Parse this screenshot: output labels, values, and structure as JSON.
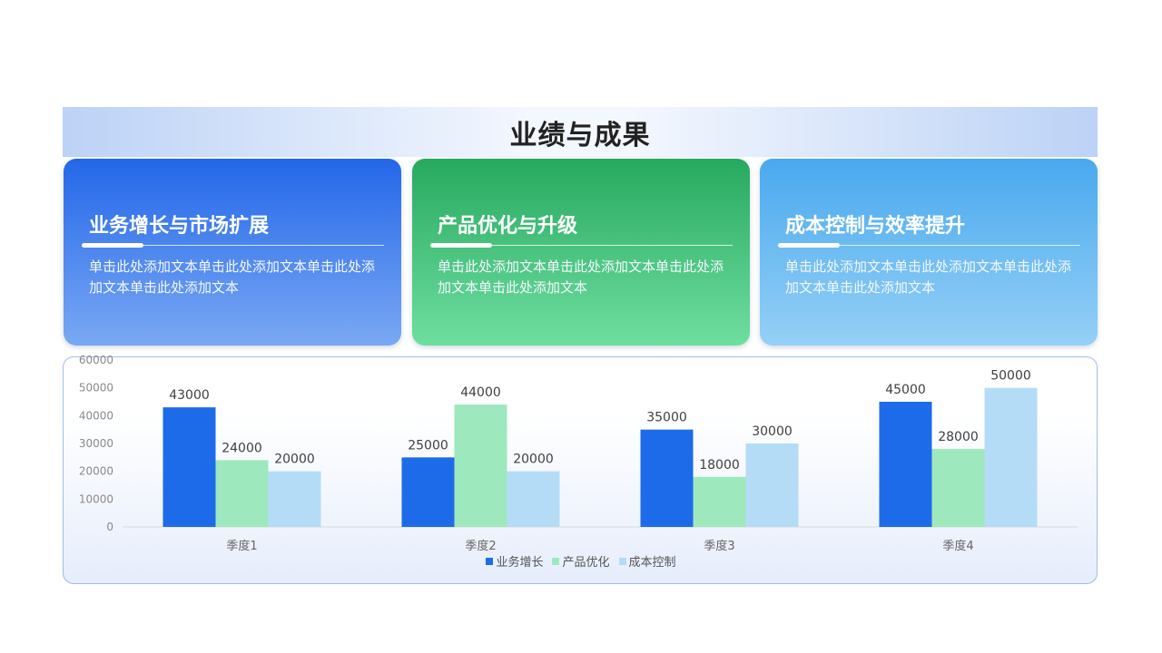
{
  "title": "业绩与成果",
  "cards": [
    {
      "heading": "业务增长与市场扩展",
      "body": "单击此处添加文本单击此处添加文本单击此处添加文本单击此处添加文本"
    },
    {
      "heading": "产品优化与升级",
      "body": "单击此处添加文本单击此处添加文本单击此处添加文本单击此处添加文本"
    },
    {
      "heading": "成本控制与效率提升",
      "body": "单击此处添加文本单击此处添加文本单击此处添加文本单击此处添加文本"
    }
  ],
  "colors": {
    "series1": "#1e6bea",
    "series2": "#9ee8be",
    "series3": "#b4dcf6",
    "axis_text": "#8a8a8a",
    "label_text": "#404040"
  },
  "chart_data": {
    "type": "bar",
    "categories": [
      "季度1",
      "季度2",
      "季度3",
      "季度4"
    ],
    "series": [
      {
        "name": "业务增长",
        "values": [
          43000,
          25000,
          35000,
          45000
        ]
      },
      {
        "name": "产品优化",
        "values": [
          24000,
          44000,
          18000,
          28000
        ]
      },
      {
        "name": "成本控制",
        "values": [
          20000,
          20000,
          30000,
          50000
        ]
      }
    ],
    "ylim": [
      0,
      60000
    ],
    "yticks": [
      0,
      10000,
      20000,
      30000,
      40000,
      50000,
      60000
    ],
    "data_labels": true,
    "legend_position": "bottom",
    "grid": false
  }
}
